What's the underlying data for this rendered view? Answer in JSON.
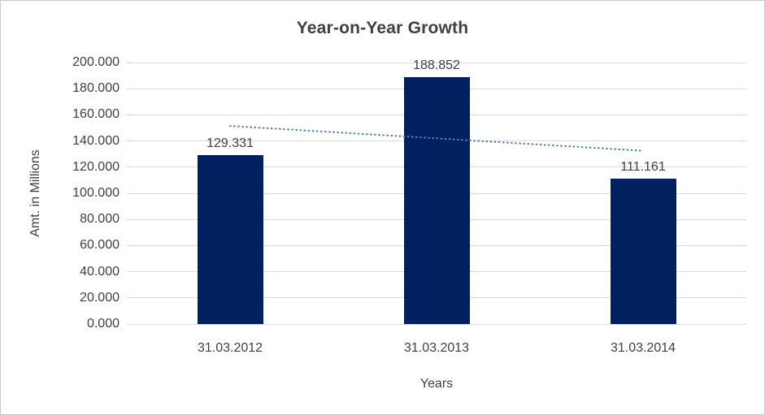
{
  "chart_data": {
    "type": "bar",
    "title": "Year-on-Year Growth",
    "xlabel": "Years",
    "ylabel": "Amt. in Millions",
    "categories": [
      "31.03.2012",
      "31.03.2013",
      "31.03.2014"
    ],
    "values": [
      129.331,
      188.852,
      111.161
    ],
    "data_labels": [
      "129.331",
      "188.852",
      "111.161"
    ],
    "ylim": [
      0,
      200
    ],
    "ytick_step": 20,
    "ytick_labels": [
      "0.000",
      "20.000",
      "40.000",
      "60.000",
      "80.000",
      "100.000",
      "120.000",
      "140.000",
      "160.000",
      "180.000",
      "200.000"
    ],
    "grid": true,
    "legend": false,
    "trendline": {
      "type": "linear",
      "style": "dotted",
      "start_value": 151.5,
      "end_value": 132.5,
      "color": "#4F81BD"
    },
    "colors": {
      "bar": "#002060",
      "gridline": "#D9D9D9",
      "text": "#404040",
      "background": "#FFFFFF",
      "frame": "#C9C9C9"
    }
  }
}
